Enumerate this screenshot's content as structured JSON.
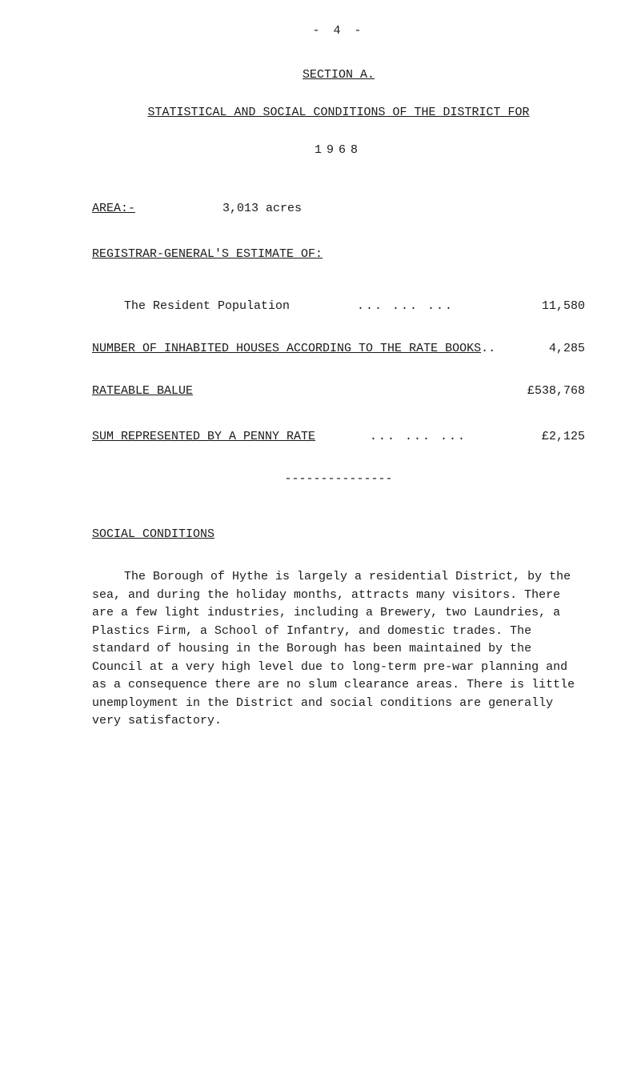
{
  "page_number_text": "- 4 -",
  "section_title": "SECTION A.",
  "main_title": "STATISTICAL AND SOCIAL CONDITIONS OF THE DISTRICT FOR",
  "year": "1968",
  "area": {
    "label": "AREA:-",
    "value": "3,013 acres"
  },
  "registrar_header": "REGISTRAR-GENERAL'S ESTIMATE OF:",
  "rows": {
    "population": {
      "label": "The Resident Population",
      "dots": "...  ...  ...",
      "value": "11,580"
    },
    "houses": {
      "label": "NUMBER OF INHABITED HOUSES ACCORDING TO THE RATE BOOKS",
      "trail": " ..",
      "value": "4,285"
    },
    "rateable": {
      "label": "RATEABLE BALUE",
      "value": "£538,768"
    },
    "penny_rate": {
      "label": "SUM REPRESENTED BY A PENNY RATE",
      "dots": "...  ...  ...",
      "value": "£2,125"
    }
  },
  "dash_line": "---------------",
  "social_conditions": {
    "header": "SOCIAL CONDITIONS",
    "paragraph": "The Borough of Hythe is largely a residential District, by the sea, and during the holiday months, attracts many visitors.  There are a few light industries, including a Brewery, two Laundries, a Plastics Firm, a School of Infantry, and domestic trades.  The standard of housing in the Borough has been maintained by the Council at a very high level due to long-term pre-war planning and as a consequence there are no slum clearance areas.  There is little unemployment in the District and social conditions are generally very satisfactory."
  }
}
